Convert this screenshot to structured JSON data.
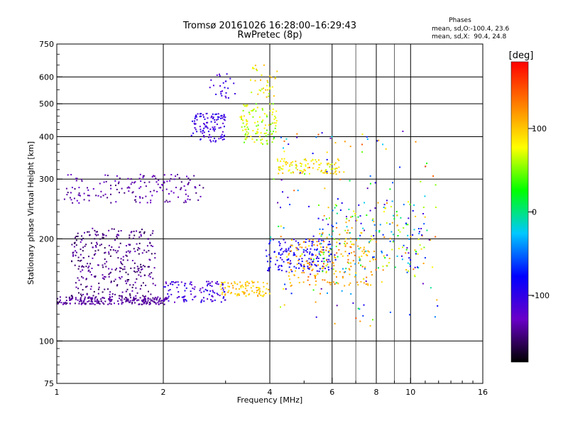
{
  "chart_data": {
    "type": "scatter",
    "title": "Tromsø 20161026 16:28:00–16:29:43",
    "subtitle": "RwPretec (8p)",
    "xlabel": "Frequency [MHz]",
    "ylabel": "Stationary phase Virtual Height [km]",
    "x_scale": "log",
    "y_scale": "log",
    "xlim": [
      1,
      16
    ],
    "ylim": [
      75,
      750
    ],
    "x_ticks": [
      1,
      2,
      4,
      6,
      8,
      10,
      16
    ],
    "y_ticks": [
      75,
      100,
      200,
      300,
      400,
      500,
      600,
      750
    ],
    "grid_x": [
      2,
      4,
      6,
      8,
      10
    ],
    "grid_x_minor": [
      7,
      9
    ],
    "grid_y": [
      100,
      200,
      300,
      400,
      500,
      600
    ],
    "grid": true,
    "colorbar": {
      "label": "[deg]",
      "range": [
        -180,
        180
      ],
      "ticks": [
        100,
        0,
        -100
      ],
      "colors": [
        "#000000",
        "#6a00c8",
        "#0000ff",
        "#00c8ff",
        "#00ff00",
        "#ffff00",
        "#ff8000",
        "#ff0000"
      ]
    },
    "legend": {
      "title": "Phases",
      "lines": [
        "mean, sd,O:-100.4, 23.6",
        "mean, sd,X:  90.4, 24.8"
      ],
      "placement": "top-right"
    },
    "clusters": [
      {
        "x": [
          1.0,
          2.05
        ],
        "y": [
          128,
          135
        ],
        "phase": [
          -150,
          -130
        ],
        "n": 230
      },
      {
        "x": [
          1.1,
          1.9
        ],
        "y": [
          135,
          215
        ],
        "phase": [
          -160,
          -130
        ],
        "n": 320
      },
      {
        "x": [
          1.05,
          2.6
        ],
        "y": [
          255,
          310
        ],
        "phase": [
          -150,
          -120
        ],
        "n": 160
      },
      {
        "x": [
          2.0,
          3.0
        ],
        "y": [
          130,
          150
        ],
        "phase": [
          -130,
          -90
        ],
        "n": 110
      },
      {
        "x": [
          2.4,
          3.0
        ],
        "y": [
          385,
          470
        ],
        "phase": [
          -120,
          -90
        ],
        "n": 110
      },
      {
        "x": [
          2.7,
          3.2
        ],
        "y": [
          520,
          615
        ],
        "phase": [
          -120,
          -90
        ],
        "n": 25
      },
      {
        "x": [
          2.9,
          4.0
        ],
        "y": [
          135,
          150
        ],
        "phase": [
          80,
          120
        ],
        "n": 90
      },
      {
        "x": [
          3.3,
          4.2
        ],
        "y": [
          380,
          500
        ],
        "phase": [
          40,
          90
        ],
        "n": 110
      },
      {
        "x": [
          3.5,
          4.2
        ],
        "y": [
          520,
          650
        ],
        "phase": [
          60,
          110
        ],
        "n": 35
      },
      {
        "x": [
          3.9,
          6.0
        ],
        "y": [
          160,
          200
        ],
        "phase": [
          -110,
          -70
        ],
        "n": 150
      },
      {
        "x": [
          4.5,
          8.0
        ],
        "y": [
          145,
          200
        ],
        "phase": [
          90,
          140
        ],
        "n": 170
      },
      {
        "x": [
          4.2,
          6.3
        ],
        "y": [
          310,
          345
        ],
        "phase": [
          60,
          110
        ],
        "n": 100
      },
      {
        "x": [
          5.5,
          11.0
        ],
        "y": [
          160,
          260
        ],
        "phase": [
          -120,
          130
        ],
        "n": 190
      },
      {
        "x": [
          4.0,
          12.0
        ],
        "y": [
          110,
          420
        ],
        "phase": [
          -140,
          150
        ],
        "n": 170
      }
    ]
  }
}
